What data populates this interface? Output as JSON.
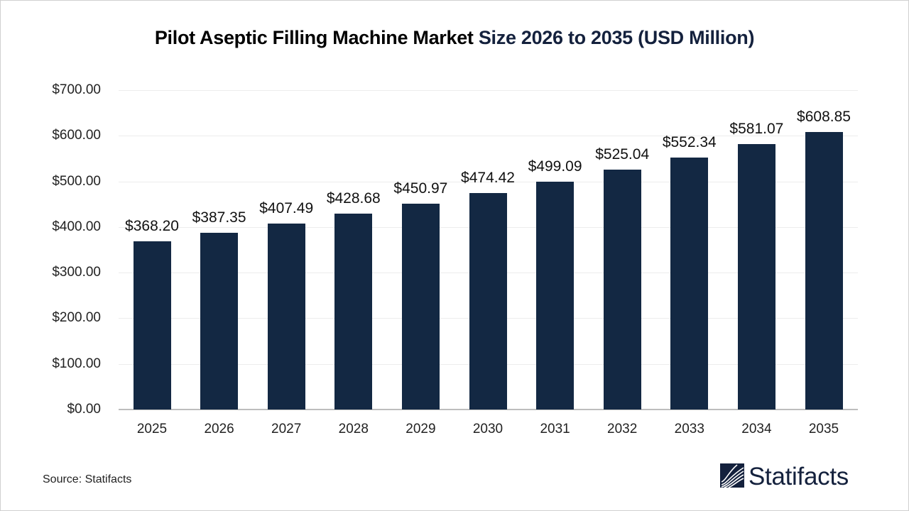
{
  "title": {
    "main": "Pilot Aseptic Filling Machine Market ",
    "accent": "Size 2026 to 2035 (USD Million)"
  },
  "source": "Source: Statifacts",
  "logo": {
    "text": "Statifacts",
    "icon": "statifacts-wave-logo-icon"
  },
  "colors": {
    "bar": "#132843",
    "title_accent": "#14213d",
    "grid": "#ececec",
    "axis": "#bdbdbd"
  },
  "chart_data": {
    "type": "bar",
    "title": "Pilot Aseptic Filling Machine Market Size 2026 to 2035 (USD Million)",
    "xlabel": "",
    "ylabel": "",
    "categories": [
      "2025",
      "2026",
      "2027",
      "2028",
      "2029",
      "2030",
      "2031",
      "2032",
      "2033",
      "2034",
      "2035"
    ],
    "values": [
      368.2,
      387.35,
      407.49,
      428.68,
      450.97,
      474.42,
      499.09,
      525.04,
      552.34,
      581.07,
      608.85
    ],
    "value_labels": [
      "$368.20",
      "$387.35",
      "$407.49",
      "$428.68",
      "$450.97",
      "$474.42",
      "$499.09",
      "$525.04",
      "$552.34",
      "$581.07",
      "$608.85"
    ],
    "ylim": [
      0,
      700
    ],
    "yticks": [
      0,
      100,
      200,
      300,
      400,
      500,
      600,
      700
    ],
    "ytick_labels": [
      "$0.00",
      "$100.00",
      "$200.00",
      "$300.00",
      "$400.00",
      "$500.00",
      "$600.00",
      "$700.00"
    ],
    "grid": true,
    "legend": null
  }
}
